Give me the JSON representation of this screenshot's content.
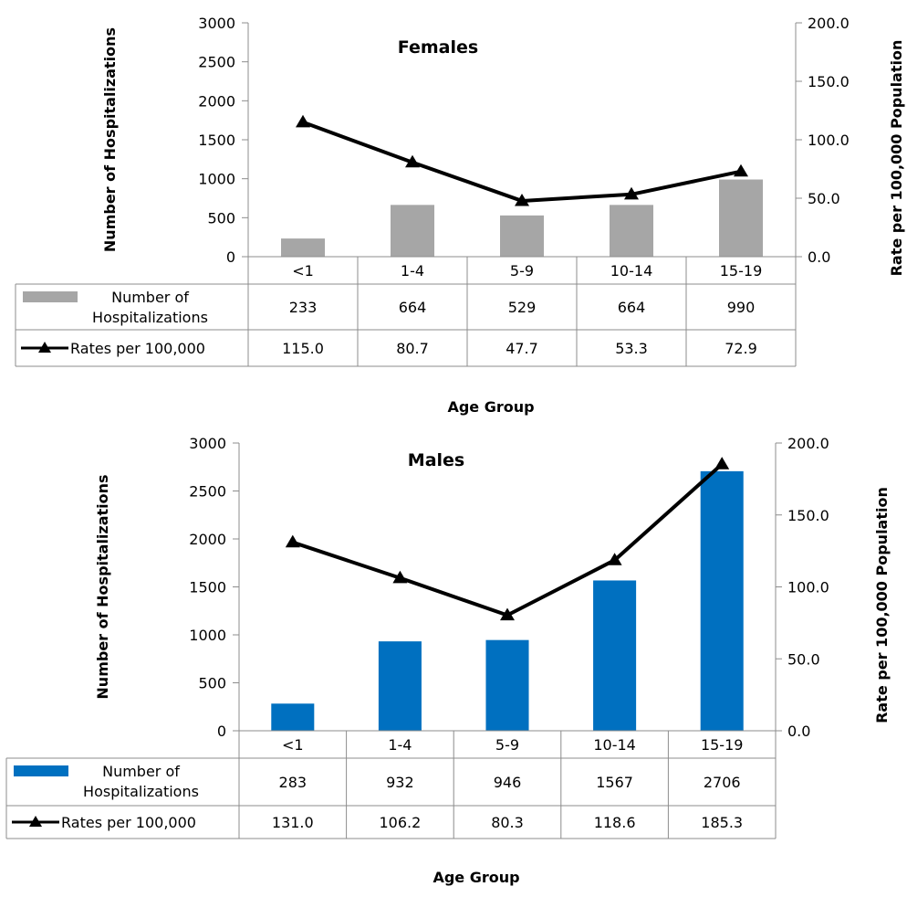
{
  "chart_data": [
    {
      "type": "bar",
      "title": "Females",
      "xlabel": "Age Group",
      "ylabel": "Number of Hospitalizations",
      "y2label": "Rate per 100,000 Population",
      "categories": [
        "<1",
        "1-4",
        "5-9",
        "10-14",
        "15-19"
      ],
      "ylim": [
        0,
        3000
      ],
      "y2lim": [
        0,
        200
      ],
      "yticks": [
        "0",
        "500",
        "1000",
        "1500",
        "2000",
        "2500",
        "3000"
      ],
      "y2ticks": [
        "0.0",
        "50.0",
        "100.0",
        "150.0",
        "200.0"
      ],
      "bar_color": "#a6a6a6",
      "line_color": "#000000",
      "series": [
        {
          "name": "Number of Hospitalizations",
          "name_lines": [
            "Number of",
            "Hospitalizations"
          ],
          "kind": "bar",
          "axis": "left",
          "values": [
            233,
            664,
            529,
            664,
            990
          ],
          "labels": [
            "233",
            "664",
            "529",
            "664",
            "990"
          ]
        },
        {
          "name": "Rates per 100,000",
          "kind": "line",
          "axis": "right",
          "values": [
            115.0,
            80.7,
            47.7,
            53.3,
            72.9
          ],
          "labels": [
            "115.0",
            "80.7",
            "47.7",
            "53.3",
            "72.9"
          ]
        }
      ]
    },
    {
      "type": "bar",
      "title": "Males",
      "xlabel": "Age Group",
      "ylabel": "Number of Hospitalizations",
      "y2label": "Rate per 100,000 Population",
      "categories": [
        "<1",
        "1-4",
        "5-9",
        "10-14",
        "15-19"
      ],
      "ylim": [
        0,
        3000
      ],
      "y2lim": [
        0,
        200
      ],
      "yticks": [
        "0",
        "500",
        "1000",
        "1500",
        "2000",
        "2500",
        "3000"
      ],
      "y2ticks": [
        "0.0",
        "50.0",
        "100.0",
        "150.0",
        "200.0"
      ],
      "bar_color": "#0070c0",
      "line_color": "#000000",
      "series": [
        {
          "name": "Number of Hospitalizations",
          "name_lines": [
            "Number of",
            "Hospitalizations"
          ],
          "kind": "bar",
          "axis": "left",
          "values": [
            283,
            932,
            946,
            1567,
            2706
          ],
          "labels": [
            "283",
            "932",
            "946",
            "1567",
            "2706"
          ]
        },
        {
          "name": "Rates per 100,000",
          "kind": "line",
          "axis": "right",
          "values": [
            131.0,
            106.2,
            80.3,
            118.6,
            185.3
          ],
          "labels": [
            "131.0",
            "106.2",
            "80.3",
            "118.6",
            "185.3"
          ]
        }
      ]
    }
  ]
}
